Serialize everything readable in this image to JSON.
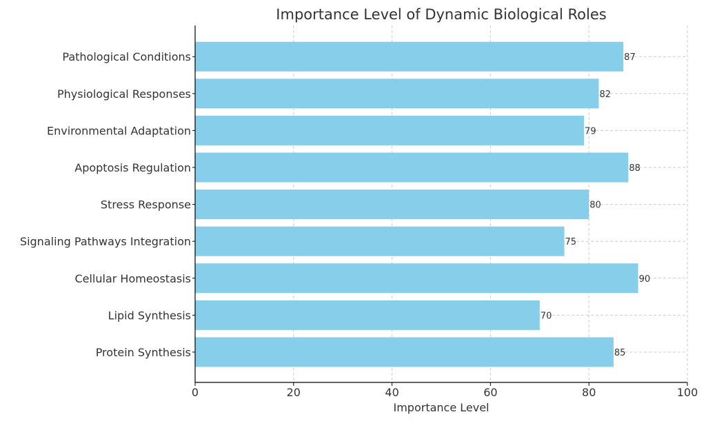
{
  "chart_data": {
    "type": "bar",
    "orientation": "horizontal",
    "title": "Importance Level of Dynamic Biological Roles",
    "xlabel": "Importance Level",
    "ylabel": "",
    "xlim": [
      0,
      100
    ],
    "xticks": [
      0,
      20,
      40,
      60,
      80,
      100
    ],
    "grid": true,
    "bar_color": "#87ceeb",
    "categories": [
      "Protein Synthesis",
      "Lipid Synthesis",
      "Cellular Homeostasis",
      "Signaling Pathways Integration",
      "Stress Response",
      "Apoptosis Regulation",
      "Environmental Adaptation",
      "Physiological Responses",
      "Pathological Conditions"
    ],
    "values": [
      85,
      70,
      90,
      75,
      80,
      88,
      79,
      82,
      87
    ]
  }
}
